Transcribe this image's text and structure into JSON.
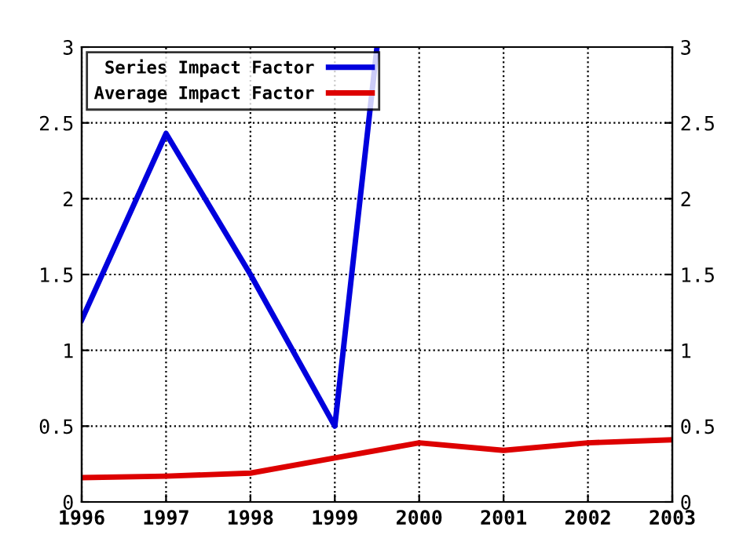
{
  "chart_data": {
    "type": "line",
    "x": [
      1996,
      1997,
      1998,
      1999,
      2000,
      2001,
      2002,
      2003
    ],
    "series": [
      {
        "name": "Series Impact Factor",
        "color": "#0000dd",
        "x": [
          1996,
          1997,
          1998,
          1999,
          1999.5
        ],
        "values": [
          1.2,
          2.43,
          1.5,
          0.5,
          3
        ]
      },
      {
        "name": "Average Impact Factor",
        "color": "#dd0000",
        "values": [
          0.16,
          0.17,
          0.19,
          0.29,
          0.39,
          0.34,
          0.39,
          0.41
        ]
      }
    ],
    "xlim": [
      1996,
      2003
    ],
    "xticks": [
      1996,
      1997,
      1998,
      1999,
      2000,
      2001,
      2002,
      2003
    ],
    "ylim": [
      0,
      3
    ],
    "yticks": [
      0,
      {
        "value": 0.5,
        "label": "0.5"
      },
      1,
      {
        "value": 1.5,
        "label": "1.5"
      },
      2,
      {
        "value": 2.5,
        "label": "2.5"
      },
      3
    ],
    "y2lim": [
      0,
      3
    ],
    "y2ticks": [
      0,
      {
        "value": 0.5,
        "label": "0.5"
      },
      1,
      {
        "value": 1.5,
        "label": "1.5"
      },
      2,
      {
        "value": 2.5,
        "label": "2.5"
      },
      3
    ],
    "grid": true,
    "legend": "top left",
    "line_style": "solid",
    "marker": "none"
  }
}
